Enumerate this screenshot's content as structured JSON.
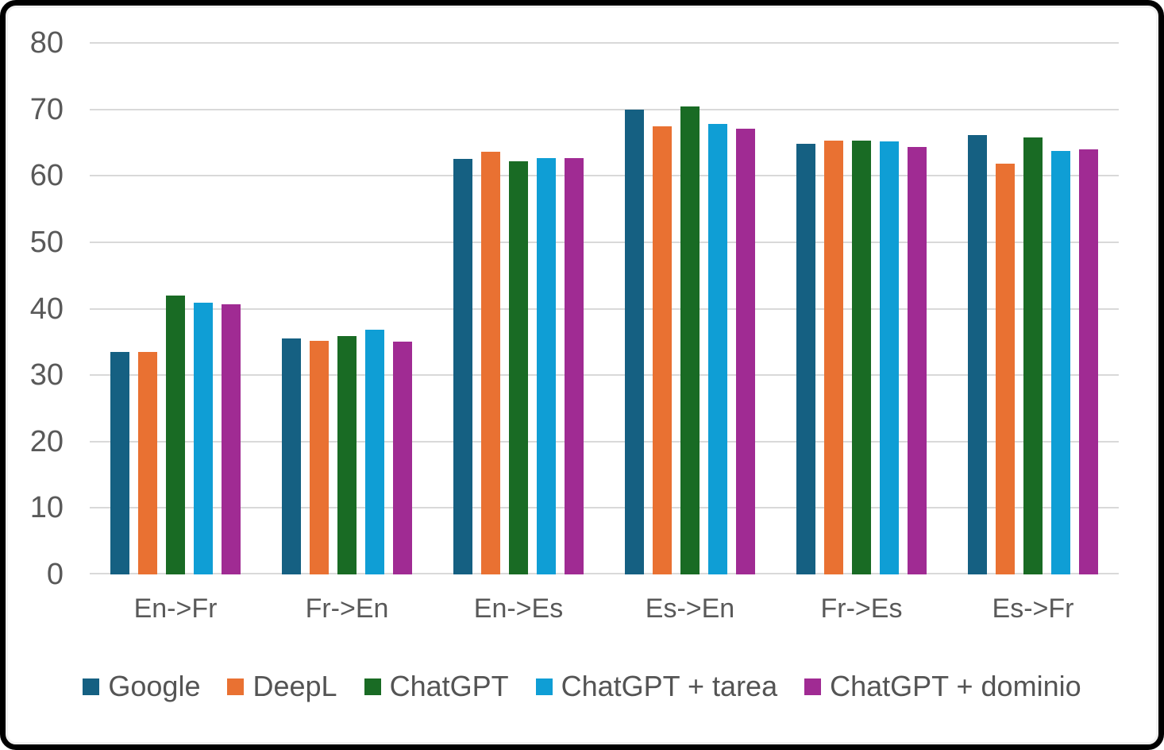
{
  "chart_data": {
    "type": "bar",
    "categories": [
      "En->Fr",
      "Fr->En",
      "En->Es",
      "Es->En",
      "Fr->Es",
      "Es->Fr"
    ],
    "series": [
      {
        "name": "Google",
        "color": "#156082",
        "values": [
          33.5,
          35.5,
          62.5,
          70.0,
          64.8,
          66.1
        ]
      },
      {
        "name": "DeepL",
        "color": "#E97132",
        "values": [
          33.5,
          35.2,
          63.6,
          67.4,
          65.3,
          61.8
        ]
      },
      {
        "name": "ChatGPT",
        "color": "#196B24",
        "values": [
          42.0,
          35.9,
          62.2,
          70.4,
          65.3,
          65.8
        ]
      },
      {
        "name": "ChatGPT + tarea",
        "color": "#0F9ED5",
        "values": [
          40.9,
          36.8,
          62.7,
          67.8,
          65.2,
          63.7
        ]
      },
      {
        "name": "ChatGPT + dominio",
        "color": "#A02B93",
        "values": [
          40.6,
          35.0,
          62.7,
          67.1,
          64.3,
          64.0
        ]
      }
    ],
    "ylim": [
      0,
      80
    ],
    "yticks": [
      0,
      10,
      20,
      30,
      40,
      50,
      60,
      70,
      80
    ],
    "grid": true,
    "legend_position": "bottom",
    "styles": {
      "gridline_color": "#D9D9D9",
      "axis_text_color": "#595959",
      "legend_text_color": "#545454",
      "frame_border_color": "#000000",
      "background_color": "#FFFFFF"
    }
  }
}
